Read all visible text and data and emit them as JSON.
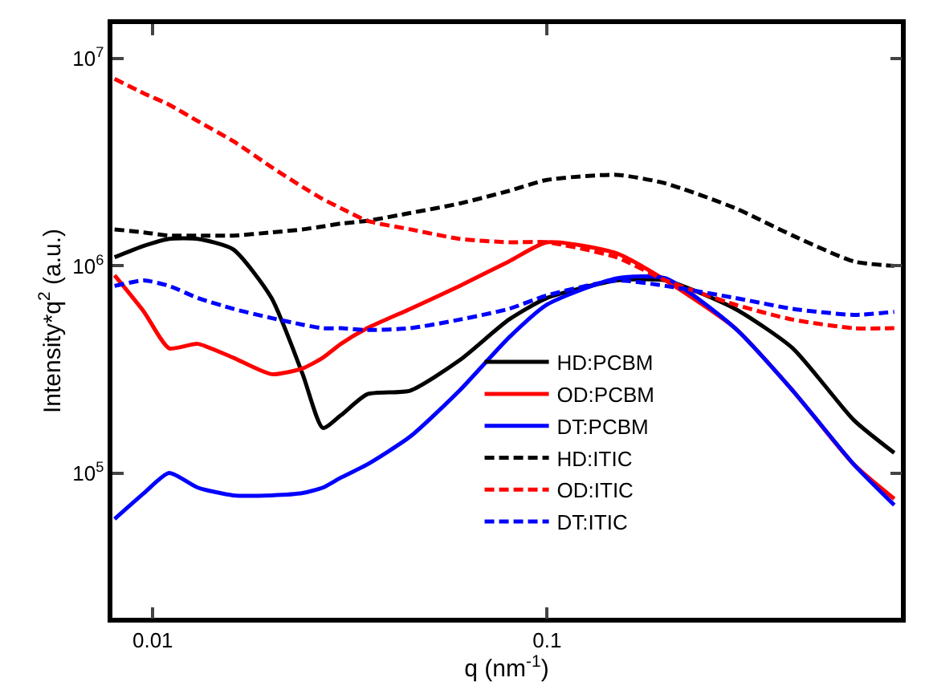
{
  "chart_data": {
    "type": "line",
    "xlabel": "q (nm$^{-1}$)",
    "ylabel": "Intensity*q$^{2}$ (a.u.)",
    "log": "xy",
    "xlim": [
      0.0079,
      0.79
    ],
    "ylim": [
      20000,
      14700000
    ],
    "xticks": [
      0.01,
      0.1
    ],
    "yticks": [
      {
        "value": 100000,
        "label": "10$^{5}$"
      },
      {
        "value": 1000000,
        "label": "10$^{6}$"
      },
      {
        "value": 10000000,
        "label": "10$^{7}$"
      }
    ],
    "legend": "bottom right",
    "marker": "none",
    "x": [
      0.008,
      0.0095,
      0.011,
      0.013,
      0.016,
      0.02,
      0.024,
      0.027,
      0.03,
      0.035,
      0.045,
      0.06,
      0.08,
      0.1,
      0.15,
      0.2,
      0.3,
      0.42,
      0.6,
      0.76
    ],
    "series": [
      {
        "name": "HD:PCBM",
        "color": "#000000",
        "line_style": "solid",
        "values": [
          1100000,
          1250000,
          1350000,
          1350000,
          1200000,
          700000,
          300000,
          165000,
          190000,
          240000,
          250000,
          350000,
          550000,
          700000,
          850000,
          850000,
          620000,
          400000,
          180000,
          125000
        ]
      },
      {
        "name": "OD:PCBM",
        "color": "#ff0000",
        "line_style": "solid",
        "values": [
          900000,
          600000,
          400000,
          420000,
          360000,
          300000,
          320000,
          360000,
          420000,
          500000,
          620000,
          800000,
          1050000,
          1300000,
          1150000,
          850000,
          500000,
          250000,
          110000,
          75000
        ]
      },
      {
        "name": "DT:PCBM",
        "color": "#0000ff",
        "line_style": "solid",
        "values": [
          60000,
          80000,
          100000,
          85000,
          78000,
          78000,
          80000,
          85000,
          95000,
          110000,
          150000,
          250000,
          450000,
          650000,
          870000,
          870000,
          500000,
          250000,
          110000,
          70000
        ]
      },
      {
        "name": "HD:ITIC",
        "color": "#000000",
        "line_style": "dashed",
        "values": [
          1500000,
          1450000,
          1400000,
          1400000,
          1400000,
          1450000,
          1500000,
          1550000,
          1600000,
          1650000,
          1800000,
          2000000,
          2300000,
          2600000,
          2750000,
          2500000,
          1900000,
          1400000,
          1050000,
          1000000
        ]
      },
      {
        "name": "OD:ITIC",
        "color": "#ff0000",
        "line_style": "dashed",
        "values": [
          8000000,
          6800000,
          6000000,
          5000000,
          4000000,
          3000000,
          2400000,
          2100000,
          1900000,
          1650000,
          1500000,
          1350000,
          1300000,
          1300000,
          1100000,
          850000,
          650000,
          550000,
          500000,
          500000
        ]
      },
      {
        "name": "DT:ITIC",
        "color": "#0000ff",
        "line_style": "dashed",
        "values": [
          800000,
          850000,
          800000,
          700000,
          620000,
          560000,
          520000,
          500000,
          500000,
          490000,
          500000,
          550000,
          620000,
          720000,
          850000,
          800000,
          700000,
          620000,
          580000,
          600000
        ]
      }
    ]
  }
}
